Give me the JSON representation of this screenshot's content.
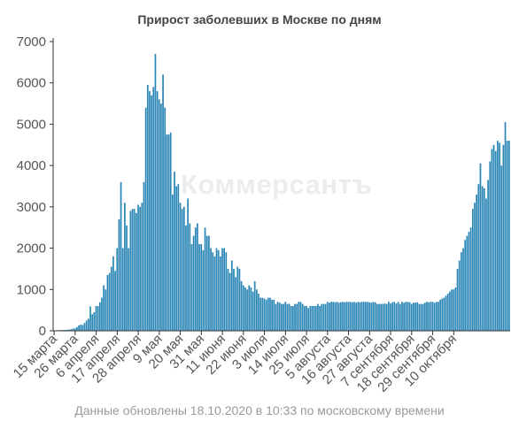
{
  "chart_data": {
    "type": "bar",
    "title": "Прирост заболевших в Москве по дням",
    "footer": "Данные обновлены 18.10.2020 в 10:33 по московскому времени",
    "watermark": "Коммерсантъ",
    "bar_color": "#2a86b5",
    "axis_color": "#333333",
    "ylim": [
      0,
      7000
    ],
    "grid": false,
    "y_ticks": [
      0,
      1000,
      2000,
      3000,
      4000,
      5000,
      6000,
      7000
    ],
    "x_start": "2020-03-15",
    "x_end": "2020-10-18",
    "x_ticks": [
      "15 марта",
      "26 марта",
      "6 апреля",
      "17 апреля",
      "28 апреля",
      "9 мая",
      "20 мая",
      "31 мая",
      "11 июня",
      "22 июня",
      "3 июля",
      "14 июля",
      "25 июля",
      "5 августа",
      "16 августа",
      "27 августа",
      "7 сентября",
      "18 сентября",
      "29 сентября",
      "10 октября"
    ],
    "values": [
      10,
      11,
      12,
      16,
      19,
      16,
      22,
      26,
      30,
      40,
      50,
      60,
      90,
      130,
      150,
      140,
      190,
      250,
      290,
      590,
      400,
      450,
      600,
      600,
      690,
      800,
      1100,
      1000,
      1350,
      1400,
      1550,
      1800,
      1450,
      2000,
      2700,
      3600,
      2000,
      3100,
      2550,
      2000,
      2900,
      2950,
      2950,
      2850,
      3050,
      3000,
      3100,
      3600,
      5400,
      5950,
      5800,
      5700,
      5900,
      6700,
      5800,
      5600,
      5500,
      6200,
      5400,
      4750,
      4750,
      4800,
      3300,
      3850,
      3500,
      3550,
      3100,
      2950,
      3000,
      2550,
      3200,
      2600,
      2100,
      2300,
      2500,
      2600,
      2100,
      2100,
      1950,
      2500,
      2300,
      2300,
      2000,
      1900,
      1800,
      2000,
      1950,
      1800,
      2000,
      2000,
      1900,
      1500,
      1400,
      1700,
      1500,
      1300,
      1550,
      1500,
      1200,
      1100,
      1050,
      1000,
      1100,
      1050,
      950,
      1200,
      1000,
      900,
      800,
      800,
      780,
      750,
      800,
      800,
      750,
      750,
      650,
      700,
      680,
      650,
      650,
      700,
      650,
      650,
      600,
      600,
      650,
      650,
      700,
      700,
      650,
      600,
      600,
      550,
      600,
      600,
      600,
      600,
      650,
      600,
      650,
      650,
      650,
      700,
      680,
      700,
      700,
      690,
      700,
      680,
      690,
      700,
      690,
      700,
      700,
      700,
      690,
      700,
      680,
      700,
      690,
      700,
      700,
      700,
      700,
      690,
      680,
      700,
      690,
      650,
      650,
      650,
      650,
      660,
      650,
      700,
      660,
      690,
      700,
      660,
      700,
      650,
      700,
      680,
      700,
      700,
      690,
      650,
      680,
      680,
      690,
      650,
      650,
      650,
      680,
      700,
      690,
      700,
      700,
      680,
      700,
      700,
      750,
      780,
      800,
      850,
      900,
      950,
      1000,
      1000,
      1050,
      1500,
      1700,
      1900,
      2000,
      2200,
      2300,
      2400,
      2500,
      2950,
      3100,
      3300,
      3550,
      4050,
      3500,
      3450,
      3200,
      3650,
      4100,
      4400,
      4500,
      4350,
      4600,
      4550,
      4000,
      4500,
      5050,
      4600,
      4600
    ]
  }
}
